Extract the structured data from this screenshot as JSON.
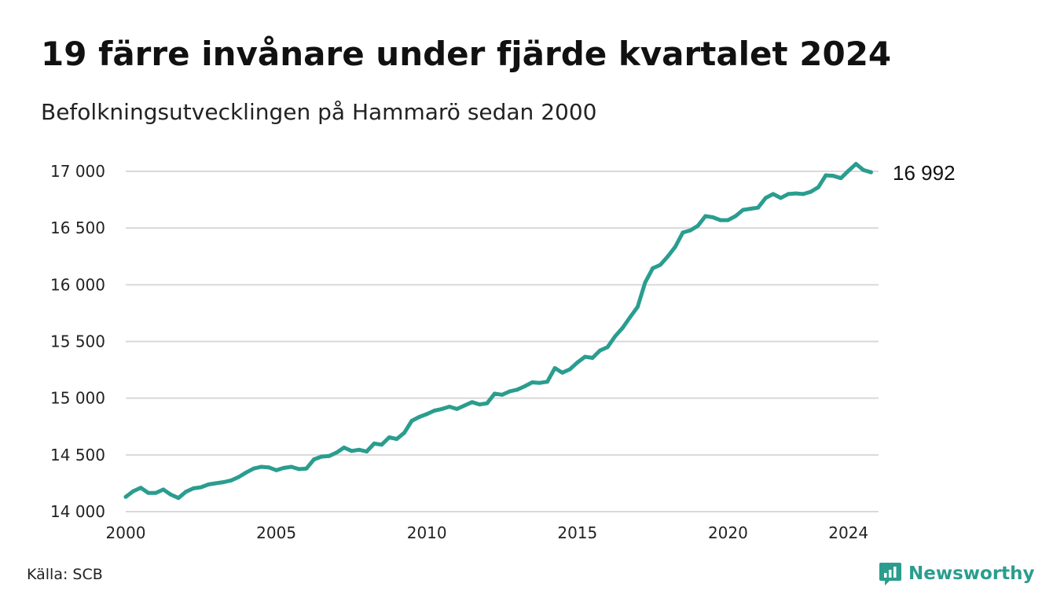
{
  "title": "19 färre invånare under fjärde kvartalet 2024",
  "subtitle": "Befolkningsutvecklingen på Hammarö sedan 2000",
  "source": "Källa: SCB",
  "brand": {
    "name": "Newsworthy",
    "icon": "newsworthy-logo-icon",
    "color": "#2a9d8f"
  },
  "chart_data": {
    "type": "line",
    "title": "19 färre invånare under fjärde kvartalet 2024",
    "subtitle": "Befolkningsutvecklingen på Hammarö sedan 2000",
    "xlabel": "",
    "ylabel": "",
    "xlim": [
      2000,
      2025
    ],
    "ylim": [
      14000,
      17000
    ],
    "grid": true,
    "line_color": "#2a9d8f",
    "x_ticks": [
      2000,
      2005,
      2010,
      2015,
      2020,
      2024
    ],
    "x_tick_labels": [
      "2000",
      "2005",
      "2010",
      "2015",
      "2020",
      "2024"
    ],
    "y_ticks": [
      14000,
      14500,
      15000,
      15500,
      16000,
      16500,
      17000
    ],
    "y_tick_labels": [
      "14 000",
      "14 500",
      "15 000",
      "15 500",
      "16 000",
      "16 500",
      "17 000"
    ],
    "end_label": "16 992",
    "series": [
      {
        "name": "",
        "x": [
          2000.0,
          2000.25,
          2000.5,
          2000.75,
          2001.0,
          2001.25,
          2001.5,
          2001.75,
          2002.0,
          2002.25,
          2002.5,
          2002.75,
          2003.0,
          2003.25,
          2003.5,
          2003.75,
          2004.0,
          2004.25,
          2004.5,
          2004.75,
          2005.0,
          2005.25,
          2005.5,
          2005.75,
          2006.0,
          2006.25,
          2006.5,
          2006.75,
          2007.0,
          2007.25,
          2007.5,
          2007.75,
          2008.0,
          2008.25,
          2008.5,
          2008.75,
          2009.0,
          2009.25,
          2009.5,
          2009.75,
          2010.0,
          2010.25,
          2010.5,
          2010.75,
          2011.0,
          2011.25,
          2011.5,
          2011.75,
          2012.0,
          2012.25,
          2012.5,
          2012.75,
          2013.0,
          2013.25,
          2013.5,
          2013.75,
          2014.0,
          2014.25,
          2014.5,
          2014.75,
          2015.0,
          2015.25,
          2015.5,
          2015.75,
          2016.0,
          2016.25,
          2016.5,
          2016.75,
          2017.0,
          2017.25,
          2017.5,
          2017.75,
          2018.0,
          2018.25,
          2018.5,
          2018.75,
          2019.0,
          2019.25,
          2019.5,
          2019.75,
          2020.0,
          2020.25,
          2020.5,
          2020.75,
          2021.0,
          2021.25,
          2021.5,
          2021.75,
          2022.0,
          2022.25,
          2022.5,
          2022.75,
          2023.0,
          2023.25,
          2023.5,
          2023.75,
          2024.0,
          2024.25,
          2024.5,
          2024.75
        ],
        "values": [
          14130,
          14180,
          14210,
          14165,
          14165,
          14195,
          14150,
          14120,
          14175,
          14205,
          14215,
          14240,
          14250,
          14260,
          14275,
          14305,
          14345,
          14380,
          14395,
          14390,
          14365,
          14385,
          14395,
          14375,
          14380,
          14460,
          14485,
          14490,
          14520,
          14565,
          14535,
          14545,
          14530,
          14600,
          14590,
          14655,
          14640,
          14695,
          14800,
          14835,
          14860,
          14890,
          14905,
          14925,
          14905,
          14935,
          14965,
          14945,
          14955,
          15040,
          15030,
          15060,
          15075,
          15105,
          15140,
          15135,
          15145,
          15265,
          15225,
          15255,
          15315,
          15365,
          15355,
          15420,
          15450,
          15545,
          15620,
          15715,
          15805,
          16020,
          16145,
          16175,
          16250,
          16335,
          16460,
          16480,
          16520,
          16605,
          16595,
          16570,
          16570,
          16605,
          16660,
          16670,
          16680,
          16765,
          16800,
          16765,
          16800,
          16805,
          16800,
          16820,
          16860,
          16965,
          16960,
          16940,
          17005,
          17065,
          17011,
          16992
        ]
      }
    ]
  }
}
